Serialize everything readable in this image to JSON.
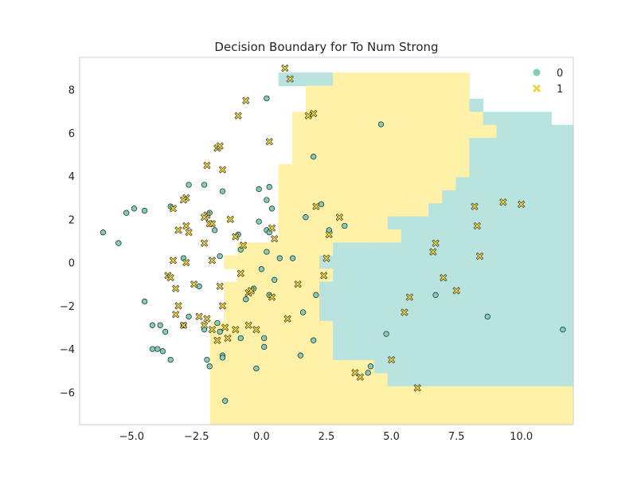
{
  "chart_data": {
    "type": "scatter",
    "title": "Decision Boundary for To Num Strong",
    "xlabel": "",
    "ylabel": "",
    "xlim": [
      -7.0,
      12.0
    ],
    "ylim": [
      -7.5,
      9.5
    ],
    "x_ticks": [
      -5,
      -2.5,
      0,
      2.5,
      5,
      7.5,
      10
    ],
    "x_tick_labels": [
      "−5.0",
      "−2.5",
      "0.0",
      "2.5",
      "5.0",
      "7.5",
      "10.0"
    ],
    "y_ticks": [
      -6,
      -4,
      -2,
      0,
      2,
      4,
      6,
      8
    ],
    "y_tick_labels": [
      "−6",
      "−4",
      "−2",
      "0",
      "2",
      "4",
      "6",
      "8"
    ],
    "grid": false,
    "legend_position": "top-right",
    "colors": {
      "class_0": "#7fcdbb",
      "class_1": "#f0d43a",
      "region_0": "#b9e3de",
      "region_1": "#fff1a8"
    },
    "series": [
      {
        "name": "0",
        "marker": "circle",
        "points": [
          [
            -6.1,
            1.4
          ],
          [
            -5.5,
            0.9
          ],
          [
            -5.2,
            2.3
          ],
          [
            -4.9,
            2.5
          ],
          [
            -4.5,
            2.4
          ],
          [
            -4.5,
            -1.8
          ],
          [
            -3.5,
            2.6
          ],
          [
            -2.8,
            3.6
          ],
          [
            -3.0,
            0.2
          ],
          [
            -2.2,
            3.6
          ],
          [
            -2.0,
            2.3
          ],
          [
            -2.4,
            -1.1
          ],
          [
            -1.8,
            1.5
          ],
          [
            -1.6,
            0.3
          ],
          [
            -1.5,
            3.3
          ],
          [
            -0.9,
            1.3
          ],
          [
            -0.8,
            0.6
          ],
          [
            -0.1,
            3.4
          ],
          [
            0.3,
            3.5
          ],
          [
            0.2,
            2.9
          ],
          [
            0.4,
            2.5
          ],
          [
            -0.1,
            1.9
          ],
          [
            0.2,
            1.5
          ],
          [
            0.3,
            1.4
          ],
          [
            0.2,
            0.5
          ],
          [
            0.7,
            0.2
          ],
          [
            0.5,
            -0.8
          ],
          [
            0.0,
            -0.3
          ],
          [
            -0.3,
            -1.2
          ],
          [
            -0.6,
            -1.7
          ],
          [
            0.3,
            -1.5
          ],
          [
            -4.2,
            -2.9
          ],
          [
            -3.9,
            -2.9
          ],
          [
            -3.7,
            -3.2
          ],
          [
            -4.0,
            -4.0
          ],
          [
            -3.8,
            -4.1
          ],
          [
            -4.2,
            -4.0
          ],
          [
            -3.0,
            -2.9
          ],
          [
            -2.8,
            -2.5
          ],
          [
            -2.2,
            -3.1
          ],
          [
            -1.7,
            -2.8
          ],
          [
            -1.6,
            -3.2
          ],
          [
            -0.8,
            -3.5
          ],
          [
            0.1,
            -3.5
          ],
          [
            0.1,
            -3.9
          ],
          [
            -3.5,
            -4.5
          ],
          [
            -2.1,
            -4.5
          ],
          [
            -2.0,
            -4.8
          ],
          [
            -1.5,
            -4.3
          ],
          [
            -1.5,
            -4.4
          ],
          [
            -0.2,
            -4.9
          ],
          [
            -1.4,
            -6.4
          ],
          [
            1.5,
            -4.3
          ],
          [
            1.7,
            2.1
          ],
          [
            2.0,
            4.9
          ],
          [
            2.3,
            2.7
          ],
          [
            2.6,
            1.5
          ],
          [
            3.2,
            1.7
          ],
          [
            1.6,
            -2.3
          ],
          [
            2.0,
            -3.6
          ],
          [
            2.1,
            -1.5
          ],
          [
            4.6,
            6.4
          ],
          [
            4.8,
            -3.3
          ],
          [
            4.2,
            -4.8
          ],
          [
            4.1,
            -5.1
          ],
          [
            6.7,
            -1.5
          ],
          [
            8.7,
            -2.5
          ],
          [
            11.6,
            -3.1
          ],
          [
            0.2,
            7.6
          ],
          [
            1.2,
            0.2
          ]
        ]
      },
      {
        "name": "1",
        "marker": "x",
        "points": [
          [
            0.9,
            9.0
          ],
          [
            1.1,
            8.5
          ],
          [
            -0.6,
            7.5
          ],
          [
            -0.9,
            6.8
          ],
          [
            1.8,
            6.8
          ],
          [
            2.0,
            6.9
          ],
          [
            -1.7,
            5.3
          ],
          [
            -1.6,
            5.4
          ],
          [
            0.3,
            5.6
          ],
          [
            -2.1,
            4.5
          ],
          [
            -1.5,
            4.3
          ],
          [
            -2.9,
            3.0
          ],
          [
            -3.0,
            2.9
          ],
          [
            -3.4,
            2.5
          ],
          [
            -2.1,
            2.2
          ],
          [
            -2.2,
            2.1
          ],
          [
            -2.0,
            1.8
          ],
          [
            -1.9,
            1.8
          ],
          [
            -1.2,
            2.0
          ],
          [
            -3.2,
            1.5
          ],
          [
            -2.9,
            1.7
          ],
          [
            -2.8,
            1.4
          ],
          [
            -1.0,
            1.2
          ],
          [
            0.4,
            1.6
          ],
          [
            0.5,
            1.1
          ],
          [
            -2.2,
            0.9
          ],
          [
            -0.7,
            0.8
          ],
          [
            -3.4,
            0.1
          ],
          [
            -2.9,
            0.0
          ],
          [
            -1.9,
            0.1
          ],
          [
            -3.6,
            -0.6
          ],
          [
            -3.5,
            -0.7
          ],
          [
            -3.3,
            -1.2
          ],
          [
            -2.6,
            -1.0
          ],
          [
            -1.6,
            -1.1
          ],
          [
            -0.8,
            -0.5
          ],
          [
            -0.5,
            -1.4
          ],
          [
            -0.4,
            -1.3
          ],
          [
            0.4,
            -1.6
          ],
          [
            1.4,
            -1.0
          ],
          [
            2.1,
            2.6
          ],
          [
            3.0,
            2.1
          ],
          [
            2.6,
            1.3
          ],
          [
            2.5,
            0.2
          ],
          [
            2.4,
            -0.6
          ],
          [
            -3.2,
            -2.0
          ],
          [
            -3.3,
            -2.4
          ],
          [
            -2.4,
            -2.5
          ],
          [
            -2.1,
            -2.6
          ],
          [
            -1.5,
            -2.0
          ],
          [
            -1.4,
            -3.0
          ],
          [
            -3.0,
            -2.9
          ],
          [
            -2.2,
            -2.9
          ],
          [
            -1.9,
            -3.1
          ],
          [
            -1.7,
            -3.6
          ],
          [
            -1.0,
            -3.1
          ],
          [
            -0.5,
            -2.9
          ],
          [
            -0.2,
            -3.1
          ],
          [
            1.0,
            -2.6
          ],
          [
            3.6,
            -5.1
          ],
          [
            3.8,
            -5.3
          ],
          [
            5.0,
            -4.5
          ],
          [
            5.5,
            -2.3
          ],
          [
            5.7,
            -1.6
          ],
          [
            6.6,
            0.5
          ],
          [
            6.7,
            0.9
          ],
          [
            7.0,
            -0.7
          ],
          [
            7.5,
            -1.3
          ],
          [
            8.2,
            2.6
          ],
          [
            8.3,
            1.7
          ],
          [
            8.4,
            0.3
          ],
          [
            9.3,
            2.8
          ],
          [
            10.0,
            2.7
          ],
          [
            6.0,
            -5.8
          ],
          [
            -1.3,
            -3.5
          ]
        ]
      }
    ],
    "decision_regions": {
      "grid_origin_x": -6.7,
      "grid_origin_y": 9.4,
      "cell_width": 0.525,
      "cell_height": 0.605,
      "legend": "0 = empty, 1 = class 0 region, 2 = class 1 region",
      "rows": [
        "0000000000000000000000000000000000000000",
        "0000000000000011112222222222000000000000",
        "0000000000000000222222222222000000000000",
        "0000000000000000222222222222100000000000",
        "0000000000000002222222222222211111000000",
        "0000000000000002222222222222221111111111",
        "0000000000000002222222222222111111111111",
        "0000000000000002222222222222111111111111",
        "0000000000000022222222222222111111111111",
        "0000000000000022222222222221111111111111",
        "0000000000000022222222222211111111111111",
        "0000000000000022222222222111111111111111",
        "0000000000000022222222111111111111111111",
        "0000000000000022222222211111111111111111",
        "0000000000022222221111111111111111111111",
        "0000000000222222211111111111111111111111",
        "0000000000022222221111111111111111111111",
        "0000000000222222211111111111111111111111",
        "0000000000222222211111111111111111111111",
        "0000000000222222211111111111111111111111",
        "0000000002222222221111111111111111111111",
        "0000000002222222221111111111111111111111",
        "0000000002222222221111111111111111111111",
        "0000000002222222222221111111111111111111",
        "0000000002222222222222111111111111111111",
        "0000000002222222222222222222222222222222",
        "0000000002222222222222222222222222222222",
        "0000000002222222222222222222222222222222",
        "0000000002222222222222222222222222222222"
      ]
    }
  }
}
